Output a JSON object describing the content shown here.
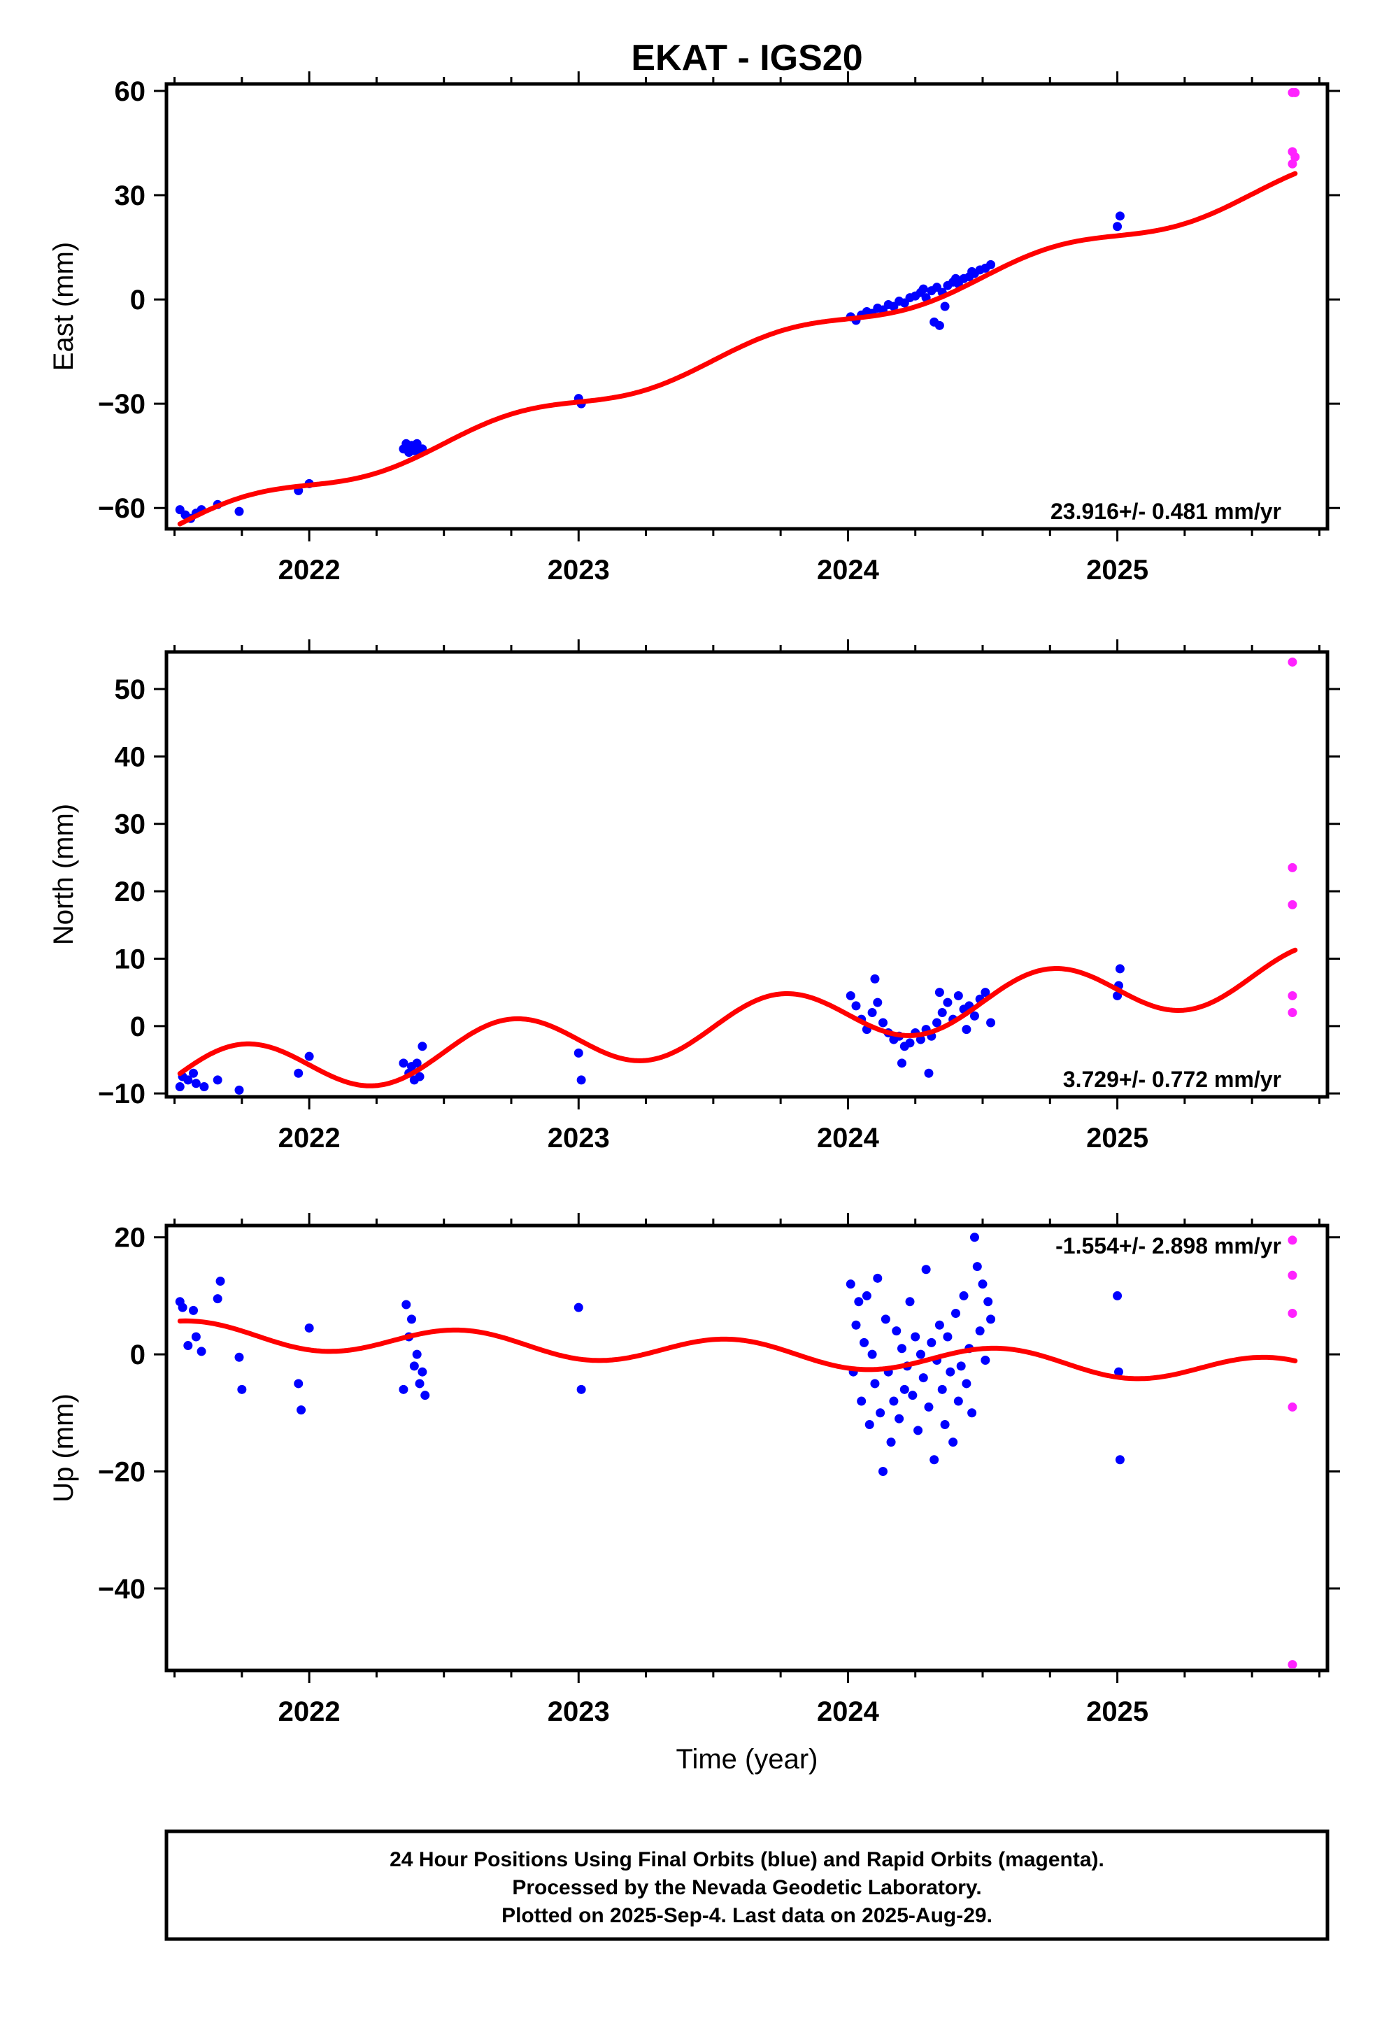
{
  "title": "EKAT - IGS20",
  "colors": {
    "final": "#0000ff",
    "rapid": "#ff22ff",
    "model": "#ff0000",
    "frame": "#000000"
  },
  "footer": {
    "lines": [
      "24 Hour Positions Using Final Orbits (blue) and Rapid Orbits (magenta).",
      "Processed by the Nevada Geodetic Laboratory.",
      "Plotted on 2025-Sep-4. Last data on 2025-Aug-29."
    ]
  },
  "chart_data": [
    {
      "type": "scatter",
      "id": "east",
      "ylabel": "East (mm)",
      "xlabel": "",
      "rate_label": "23.916+/- 0.481 mm/yr",
      "rate_position": "bottom-right",
      "xlim": [
        2021.47,
        2025.78
      ],
      "ylim": [
        -66,
        62
      ],
      "yticks": [
        -60,
        -30,
        0,
        30,
        60
      ],
      "xticks": [
        2022,
        2023,
        2024,
        2025
      ],
      "rate": 23.916,
      "model_x0": 2024.0,
      "model_y0": -5.6,
      "annual_amp": 2.5,
      "annual_phase": 0.0,
      "series": [
        {
          "name": "final",
          "color": "#0000ff",
          "points": [
            [
              2021.52,
              -60.5
            ],
            [
              2021.54,
              -62.0
            ],
            [
              2021.56,
              -63.0
            ],
            [
              2021.58,
              -61.5
            ],
            [
              2021.6,
              -60.5
            ],
            [
              2021.66,
              -59.0
            ],
            [
              2021.74,
              -61.0
            ],
            [
              2021.96,
              -55.0
            ],
            [
              2022.0,
              -53.0
            ],
            [
              2022.35,
              -43.0
            ],
            [
              2022.36,
              -41.5
            ],
            [
              2022.37,
              -44.0
            ],
            [
              2022.38,
              -42.0
            ],
            [
              2022.39,
              -43.5
            ],
            [
              2022.4,
              -41.5
            ],
            [
              2022.41,
              -44.0
            ],
            [
              2022.42,
              -43.0
            ],
            [
              2023.0,
              -28.5
            ],
            [
              2023.01,
              -30.0
            ],
            [
              2024.01,
              -5.0
            ],
            [
              2024.03,
              -6.0
            ],
            [
              2024.05,
              -4.5
            ],
            [
              2024.07,
              -3.5
            ],
            [
              2024.09,
              -4.0
            ],
            [
              2024.11,
              -2.5
            ],
            [
              2024.13,
              -3.0
            ],
            [
              2024.15,
              -1.5
            ],
            [
              2024.17,
              -2.0
            ],
            [
              2024.19,
              -0.5
            ],
            [
              2024.21,
              -1.0
            ],
            [
              2024.23,
              0.5
            ],
            [
              2024.25,
              1.0
            ],
            [
              2024.27,
              2.0
            ],
            [
              2024.29,
              0.5
            ],
            [
              2024.31,
              2.5
            ],
            [
              2024.33,
              3.5
            ],
            [
              2024.35,
              2.0
            ],
            [
              2024.37,
              4.0
            ],
            [
              2024.39,
              5.0
            ],
            [
              2024.41,
              4.5
            ],
            [
              2024.43,
              6.0
            ],
            [
              2024.45,
              6.5
            ],
            [
              2024.47,
              7.5
            ],
            [
              2024.49,
              8.5
            ],
            [
              2024.51,
              9.0
            ],
            [
              2024.53,
              10.0
            ],
            [
              2024.32,
              -6.5
            ],
            [
              2024.34,
              -7.5
            ],
            [
              2024.36,
              -2.0
            ],
            [
              2024.28,
              3.0
            ],
            [
              2024.4,
              6.0
            ],
            [
              2024.46,
              8.0
            ],
            [
              2025.0,
              21.0
            ],
            [
              2025.01,
              24.0
            ]
          ]
        },
        {
          "name": "rapid",
          "color": "#ff22ff",
          "points": [
            [
              2025.65,
              59.5
            ],
            [
              2025.66,
              59.5
            ],
            [
              2025.65,
              42.5
            ],
            [
              2025.66,
              41.0
            ],
            [
              2025.65,
              39.0
            ]
          ]
        }
      ]
    },
    {
      "type": "scatter",
      "id": "north",
      "ylabel": "North (mm)",
      "xlabel": "",
      "rate_label": "3.729+/- 0.772 mm/yr",
      "rate_position": "bottom-right",
      "xlim": [
        2021.47,
        2025.78
      ],
      "ylim": [
        -10.5,
        55.5
      ],
      "yticks": [
        -10,
        0,
        10,
        20,
        30,
        40,
        50
      ],
      "xticks": [
        2022,
        2023,
        2024,
        2025
      ],
      "rate": 3.729,
      "model_x0": 2024.0,
      "model_y0": 1.7,
      "annual_amp": 4.0,
      "annual_phase": 0.0,
      "series": [
        {
          "name": "final",
          "color": "#0000ff",
          "points": [
            [
              2021.52,
              -9.0
            ],
            [
              2021.53,
              -7.5
            ],
            [
              2021.55,
              -8.0
            ],
            [
              2021.57,
              -7.0
            ],
            [
              2021.58,
              -8.5
            ],
            [
              2021.61,
              -9.0
            ],
            [
              2021.66,
              -8.0
            ],
            [
              2021.74,
              -9.5
            ],
            [
              2021.96,
              -7.0
            ],
            [
              2022.0,
              -4.5
            ],
            [
              2022.35,
              -5.5
            ],
            [
              2022.37,
              -7.0
            ],
            [
              2022.38,
              -6.0
            ],
            [
              2022.39,
              -8.0
            ],
            [
              2022.4,
              -5.5
            ],
            [
              2022.41,
              -7.5
            ],
            [
              2022.42,
              -3.0
            ],
            [
              2023.0,
              -4.0
            ],
            [
              2023.01,
              -8.0
            ],
            [
              2024.01,
              4.5
            ],
            [
              2024.03,
              3.0
            ],
            [
              2024.05,
              1.0
            ],
            [
              2024.07,
              -0.5
            ],
            [
              2024.09,
              2.0
            ],
            [
              2024.11,
              3.5
            ],
            [
              2024.13,
              0.5
            ],
            [
              2024.15,
              -1.0
            ],
            [
              2024.17,
              -2.0
            ],
            [
              2024.19,
              -1.5
            ],
            [
              2024.21,
              -3.0
            ],
            [
              2024.23,
              -2.5
            ],
            [
              2024.25,
              -1.0
            ],
            [
              2024.27,
              -2.0
            ],
            [
              2024.29,
              -0.5
            ],
            [
              2024.31,
              -1.5
            ],
            [
              2024.33,
              0.5
            ],
            [
              2024.35,
              2.0
            ],
            [
              2024.37,
              3.5
            ],
            [
              2024.39,
              1.0
            ],
            [
              2024.41,
              4.5
            ],
            [
              2024.43,
              2.5
            ],
            [
              2024.45,
              3.0
            ],
            [
              2024.47,
              1.5
            ],
            [
              2024.49,
              4.0
            ],
            [
              2024.51,
              5.0
            ],
            [
              2024.53,
              0.5
            ],
            [
              2024.1,
              7.0
            ],
            [
              2024.2,
              -5.5
            ],
            [
              2024.3,
              -7.0
            ],
            [
              2024.34,
              5.0
            ],
            [
              2024.44,
              -0.5
            ]
          ]
        },
        {
          "name": "final-2025",
          "color": "#0000ff",
          "points": [
            [
              2025.0,
              4.5
            ],
            [
              2025.005,
              6.0
            ],
            [
              2025.01,
              8.5
            ]
          ]
        },
        {
          "name": "rapid",
          "color": "#ff22ff",
          "points": [
            [
              2025.65,
              54.0
            ],
            [
              2025.65,
              23.5
            ],
            [
              2025.65,
              18.0
            ],
            [
              2025.65,
              4.5
            ],
            [
              2025.65,
              2.0
            ]
          ]
        }
      ]
    },
    {
      "type": "scatter",
      "id": "up",
      "ylabel": "Up (mm)",
      "xlabel": "Time (year)",
      "rate_label": "-1.554+/- 2.898 mm/yr",
      "rate_position": "top-right",
      "xlim": [
        2021.47,
        2025.78
      ],
      "ylim": [
        -54,
        22
      ],
      "yticks": [
        -40,
        -20,
        0,
        20
      ],
      "xticks": [
        2022,
        2023,
        2024,
        2025
      ],
      "rate": -1.554,
      "model_x0": 2024.0,
      "model_y0": -0.3,
      "annual_amp": 2.2,
      "annual_phase": 1.2,
      "series": [
        {
          "name": "final",
          "color": "#0000ff",
          "points": [
            [
              2021.52,
              9.0
            ],
            [
              2021.53,
              8.0
            ],
            [
              2021.55,
              1.5
            ],
            [
              2021.57,
              7.5
            ],
            [
              2021.58,
              3.0
            ],
            [
              2021.6,
              0.5
            ],
            [
              2021.66,
              9.5
            ],
            [
              2021.67,
              12.5
            ],
            [
              2021.74,
              -0.5
            ],
            [
              2021.75,
              -6.0
            ],
            [
              2021.96,
              -5.0
            ],
            [
              2021.97,
              -9.5
            ],
            [
              2022.0,
              4.5
            ],
            [
              2022.35,
              -6.0
            ],
            [
              2022.36,
              8.5
            ],
            [
              2022.37,
              3.0
            ],
            [
              2022.38,
              6.0
            ],
            [
              2022.39,
              -2.0
            ],
            [
              2022.4,
              0.0
            ],
            [
              2022.41,
              -5.0
            ],
            [
              2022.42,
              -3.0
            ],
            [
              2022.43,
              -7.0
            ],
            [
              2023.0,
              8.0
            ],
            [
              2023.01,
              -6.0
            ],
            [
              2024.01,
              12.0
            ],
            [
              2024.02,
              -3.0
            ],
            [
              2024.03,
              5.0
            ],
            [
              2024.04,
              9.0
            ],
            [
              2024.05,
              -8.0
            ],
            [
              2024.06,
              2.0
            ],
            [
              2024.07,
              10.0
            ],
            [
              2024.08,
              -12.0
            ],
            [
              2024.09,
              0.0
            ],
            [
              2024.1,
              -5.0
            ],
            [
              2024.11,
              13.0
            ],
            [
              2024.12,
              -10.0
            ],
            [
              2024.13,
              -20.0
            ],
            [
              2024.14,
              6.0
            ],
            [
              2024.15,
              -3.0
            ],
            [
              2024.16,
              -15.0
            ],
            [
              2024.17,
              -8.0
            ],
            [
              2024.18,
              4.0
            ],
            [
              2024.19,
              -11.0
            ],
            [
              2024.2,
              1.0
            ],
            [
              2024.21,
              -6.0
            ],
            [
              2024.22,
              -2.0
            ],
            [
              2024.23,
              9.0
            ],
            [
              2024.24,
              -7.0
            ],
            [
              2024.25,
              3.0
            ],
            [
              2024.26,
              -13.0
            ],
            [
              2024.27,
              0.0
            ],
            [
              2024.28,
              -4.0
            ],
            [
              2024.29,
              14.5
            ],
            [
              2024.3,
              -9.0
            ],
            [
              2024.31,
              2.0
            ],
            [
              2024.32,
              -18.0
            ],
            [
              2024.33,
              -1.0
            ],
            [
              2024.34,
              5.0
            ],
            [
              2024.35,
              -6.0
            ],
            [
              2024.36,
              -12.0
            ],
            [
              2024.37,
              3.0
            ],
            [
              2024.38,
              -3.0
            ],
            [
              2024.39,
              -15.0
            ],
            [
              2024.4,
              7.0
            ],
            [
              2024.41,
              -8.0
            ],
            [
              2024.42,
              -2.0
            ],
            [
              2024.43,
              10.0
            ],
            [
              2024.44,
              -5.0
            ],
            [
              2024.45,
              1.0
            ],
            [
              2024.46,
              -10.0
            ],
            [
              2024.47,
              20.0
            ],
            [
              2024.48,
              15.0
            ],
            [
              2024.49,
              4.0
            ],
            [
              2024.5,
              12.0
            ],
            [
              2024.51,
              -1.0
            ],
            [
              2024.52,
              9.0
            ],
            [
              2024.53,
              6.0
            ]
          ]
        },
        {
          "name": "final-2025",
          "color": "#0000ff",
          "points": [
            [
              2025.0,
              10.0
            ],
            [
              2025.005,
              -3.0
            ],
            [
              2025.01,
              -18.0
            ]
          ]
        },
        {
          "name": "rapid",
          "color": "#ff22ff",
          "points": [
            [
              2025.65,
              19.5
            ],
            [
              2025.65,
              13.5
            ],
            [
              2025.65,
              7.0
            ],
            [
              2025.65,
              -9.0
            ],
            [
              2025.65,
              -53.0
            ]
          ]
        }
      ]
    }
  ]
}
